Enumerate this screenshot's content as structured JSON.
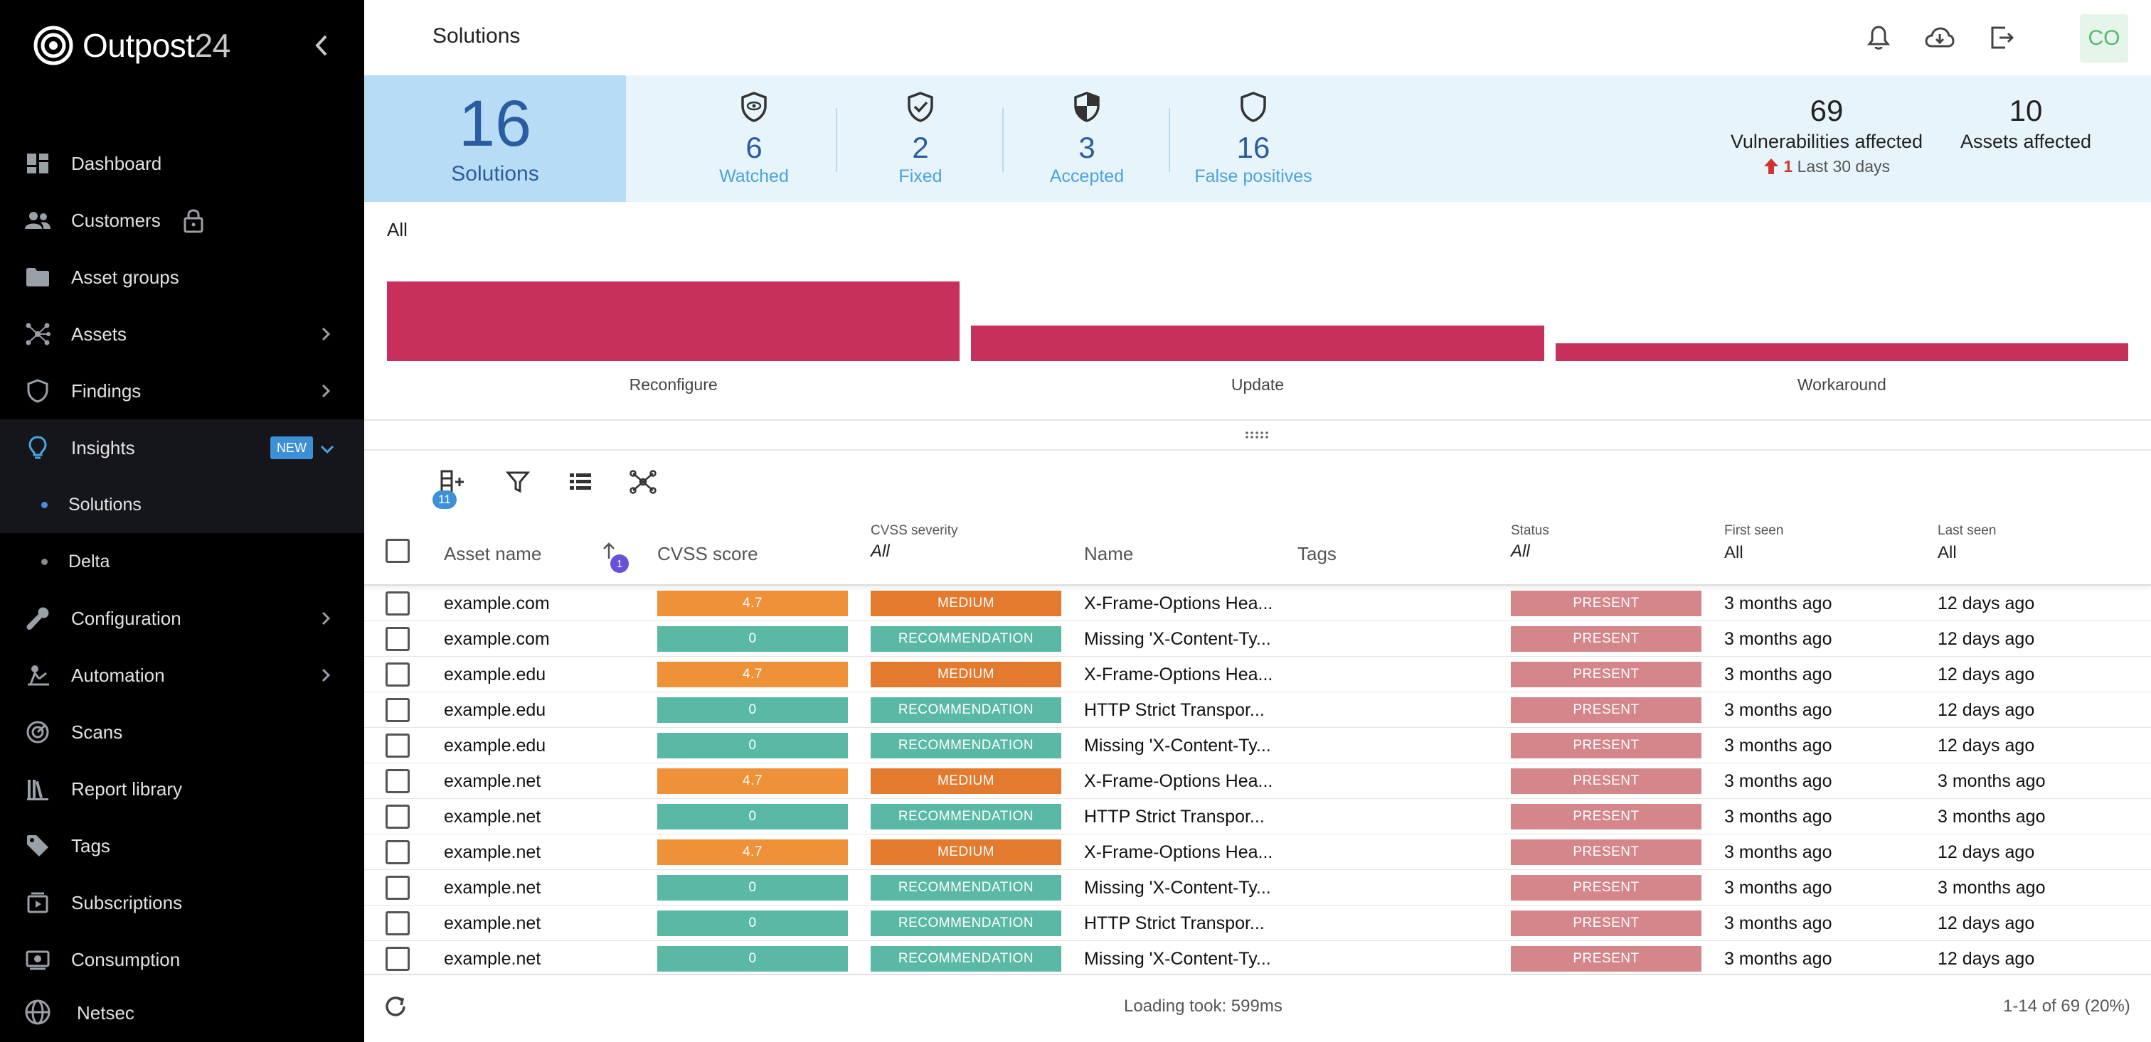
{
  "brand": {
    "name_main": "Outpost",
    "name_suffix": "24"
  },
  "sidebar": {
    "items": [
      {
        "label": "Dashboard",
        "icon": "dashboard-icon"
      },
      {
        "label": "Customers",
        "icon": "people-icon"
      },
      {
        "label": "Asset groups",
        "icon": "folder-icon"
      },
      {
        "label": "Assets",
        "icon": "network-icon"
      },
      {
        "label": "Findings",
        "icon": "shield-icon"
      },
      {
        "label": "Insights",
        "icon": "lightbulb-icon",
        "badge": "NEW"
      },
      {
        "label": "Configuration",
        "icon": "wrench-icon"
      },
      {
        "label": "Automation",
        "icon": "automation-icon"
      },
      {
        "label": "Scans",
        "icon": "scan-icon"
      },
      {
        "label": "Report library",
        "icon": "library-icon"
      },
      {
        "label": "Tags",
        "icon": "tag-icon"
      },
      {
        "label": "Subscriptions",
        "icon": "subscriptions-icon"
      },
      {
        "label": "Consumption",
        "icon": "consumption-icon"
      }
    ],
    "subitems": [
      {
        "label": "Solutions"
      },
      {
        "label": "Delta"
      }
    ],
    "footer_label": "Netsec"
  },
  "header": {
    "title": "Solutions",
    "avatar": "CO"
  },
  "summary": {
    "total": "16",
    "total_label": "Solutions",
    "stats": [
      {
        "value": "6",
        "label": "Watched"
      },
      {
        "value": "2",
        "label": "Fixed"
      },
      {
        "value": "3",
        "label": "Accepted"
      },
      {
        "value": "16",
        "label": "False positives"
      }
    ],
    "vulnerabilities": {
      "value": "69",
      "label": "Vulnerabilities affected",
      "delta": "1",
      "delta_label": "Last 30 days"
    },
    "assets": {
      "value": "10",
      "label": "Assets affected"
    }
  },
  "chart_data": {
    "type": "bar",
    "title": "All",
    "categories": [
      "Reconfigure",
      "Update",
      "Workaround"
    ],
    "values": [
      9,
      4,
      2
    ],
    "ylim": [
      0,
      9
    ],
    "xlabel": "",
    "ylabel": ""
  },
  "toolbar": {
    "column_badge": "11"
  },
  "table": {
    "headers": {
      "asset_name": "Asset name",
      "sort_badge": "1",
      "cvss_score": "CVSS score",
      "cvss_severity": "CVSS severity",
      "cvss_severity_filter": "All",
      "name": "Name",
      "tags": "Tags",
      "status": "Status",
      "status_filter": "All",
      "first_seen": "First seen",
      "first_seen_filter": "All",
      "last_seen": "Last seen",
      "last_seen_filter": "All"
    },
    "rows": [
      {
        "asset": "example.com",
        "score": "4.7",
        "severity": "MEDIUM",
        "name": "X-Frame-Options Hea...",
        "tags": "",
        "status": "PRESENT",
        "first_seen": "3 months ago",
        "last_seen": "12 days ago"
      },
      {
        "asset": "example.com",
        "score": "0",
        "severity": "RECOMMENDATION",
        "name": "Missing 'X-Content-Ty...",
        "tags": "",
        "status": "PRESENT",
        "first_seen": "3 months ago",
        "last_seen": "12 days ago"
      },
      {
        "asset": "example.edu",
        "score": "4.7",
        "severity": "MEDIUM",
        "name": "X-Frame-Options Hea...",
        "tags": "",
        "status": "PRESENT",
        "first_seen": "3 months ago",
        "last_seen": "12 days ago"
      },
      {
        "asset": "example.edu",
        "score": "0",
        "severity": "RECOMMENDATION",
        "name": "HTTP Strict Transpor...",
        "tags": "",
        "status": "PRESENT",
        "first_seen": "3 months ago",
        "last_seen": "12 days ago"
      },
      {
        "asset": "example.edu",
        "score": "0",
        "severity": "RECOMMENDATION",
        "name": "Missing 'X-Content-Ty...",
        "tags": "",
        "status": "PRESENT",
        "first_seen": "3 months ago",
        "last_seen": "12 days ago"
      },
      {
        "asset": "example.net",
        "score": "4.7",
        "severity": "MEDIUM",
        "name": "X-Frame-Options Hea...",
        "tags": "",
        "status": "PRESENT",
        "first_seen": "3 months ago",
        "last_seen": "3 months ago"
      },
      {
        "asset": "example.net",
        "score": "0",
        "severity": "RECOMMENDATION",
        "name": "HTTP Strict Transpor...",
        "tags": "",
        "status": "PRESENT",
        "first_seen": "3 months ago",
        "last_seen": "3 months ago"
      },
      {
        "asset": "example.net",
        "score": "4.7",
        "severity": "MEDIUM",
        "name": "X-Frame-Options Hea...",
        "tags": "",
        "status": "PRESENT",
        "first_seen": "3 months ago",
        "last_seen": "12 days ago"
      },
      {
        "asset": "example.net",
        "score": "0",
        "severity": "RECOMMENDATION",
        "name": "Missing 'X-Content-Ty...",
        "tags": "",
        "status": "PRESENT",
        "first_seen": "3 months ago",
        "last_seen": "3 months ago"
      },
      {
        "asset": "example.net",
        "score": "0",
        "severity": "RECOMMENDATION",
        "name": "HTTP Strict Transpor...",
        "tags": "",
        "status": "PRESENT",
        "first_seen": "3 months ago",
        "last_seen": "12 days ago"
      },
      {
        "asset": "example.net",
        "score": "0",
        "severity": "RECOMMENDATION",
        "name": "Missing 'X-Content-Ty...",
        "tags": "",
        "status": "PRESENT",
        "first_seen": "3 months ago",
        "last_seen": "12 days ago"
      }
    ]
  },
  "footer": {
    "loading": "Loading took: 599ms",
    "pagination": "1-14 of 69 (20%)"
  },
  "colors": {
    "score_medium": "#ef9139",
    "score_recommendation": "#5ab9a4",
    "severity_medium": "#e47a2e",
    "severity_recommendation": "#5ab9a4",
    "status_present": "#d4868a",
    "bar": "#c6305a"
  }
}
